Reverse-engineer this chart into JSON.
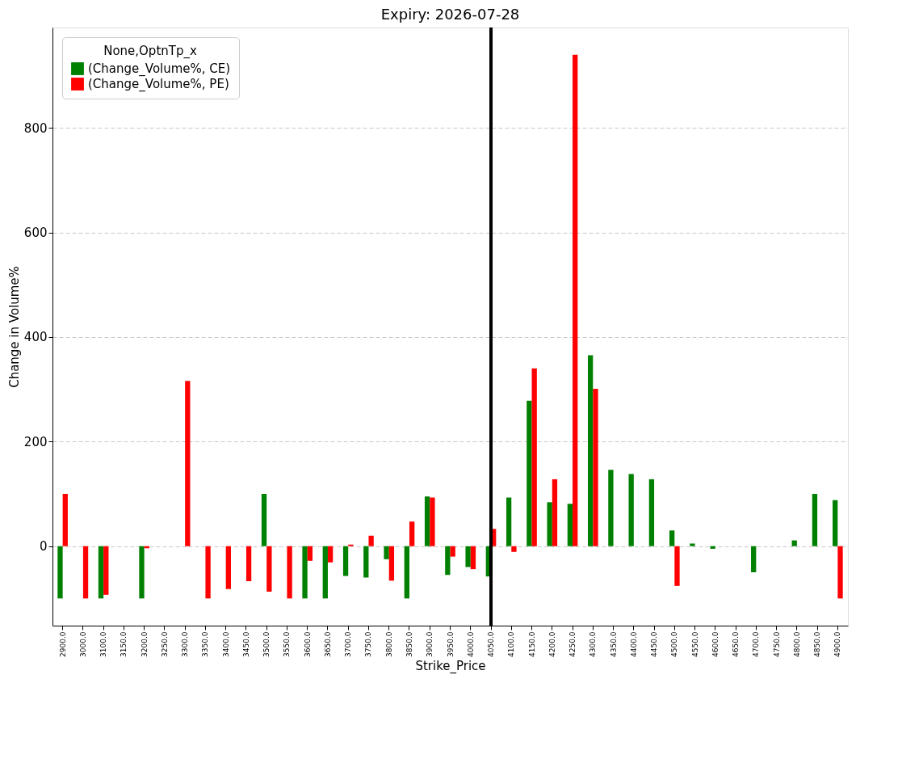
{
  "chart_data": {
    "type": "bar",
    "title": "Expiry: 2026-07-28",
    "xlabel": "Strike_Price",
    "ylabel": "Change in Volume%",
    "legend_title": "None,OptnTp_x",
    "categories": [
      "2900.0",
      "3000.0",
      "3100.0",
      "3150.0",
      "3200.0",
      "3250.0",
      "3300.0",
      "3350.0",
      "3400.0",
      "3450.0",
      "3500.0",
      "3550.0",
      "3600.0",
      "3650.0",
      "3700.0",
      "3750.0",
      "3800.0",
      "3850.0",
      "3900.0",
      "3950.0",
      "4000.0",
      "4050.0",
      "4100.0",
      "4150.0",
      "4200.0",
      "4250.0",
      "4300.0",
      "4350.0",
      "4400.0",
      "4450.0",
      "4500.0",
      "4550.0",
      "4600.0",
      "4650.0",
      "4700.0",
      "4750.0",
      "4800.0",
      "4850.0",
      "4900.0"
    ],
    "series": [
      {
        "name": "(Change_Volume%, CE)",
        "color": "#008000",
        "values": [
          -100,
          null,
          -100,
          null,
          -100,
          null,
          null,
          null,
          null,
          null,
          100,
          null,
          -100,
          -100,
          -57,
          -60,
          -25,
          -100,
          95,
          -55,
          -40,
          -58,
          93,
          278,
          84,
          81,
          365,
          146,
          138,
          128,
          30,
          5,
          -5,
          null,
          -50,
          null,
          11,
          100,
          88
        ]
      },
      {
        "name": "(Change_Volume%, PE)",
        "color": "#ff0000",
        "values": [
          100,
          -100,
          -93,
          null,
          -4,
          null,
          316,
          -100,
          -82,
          -67,
          -87,
          -100,
          -28,
          -31,
          3,
          20,
          -66,
          47,
          93,
          -20,
          -44,
          33,
          -11,
          340,
          128,
          940,
          301,
          null,
          null,
          null,
          -76,
          null,
          null,
          null,
          null,
          null,
          null,
          null,
          -100
        ]
      }
    ],
    "ylim": [
      -152,
      992
    ],
    "yticks": [
      0,
      200,
      400,
      600,
      800
    ],
    "grid": "y",
    "legend": "top left",
    "ref_lines": [
      {
        "axis": "x",
        "value": "4050.0",
        "color": "#000000"
      }
    ]
  }
}
